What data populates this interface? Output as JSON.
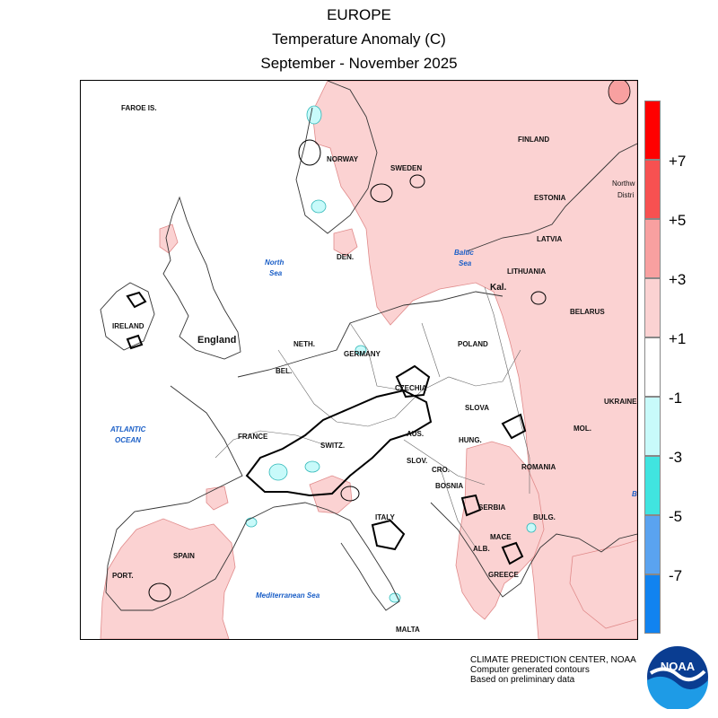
{
  "header": {
    "region": "EUROPE",
    "variable": "Temperature Anomaly (C)",
    "period": "September - November 2025"
  },
  "legend": {
    "bins": [
      {
        "label": "+7",
        "color": "#ff0000"
      },
      {
        "label": "+5",
        "color": "#f75151"
      },
      {
        "label": "+3",
        "color": "#f8a0a0"
      },
      {
        "label": "+1",
        "color": "#fbd2d2"
      },
      {
        "label": "-1",
        "color": "#ffffff"
      },
      {
        "label": "-3",
        "color": "#c8fafa"
      },
      {
        "label": "-5",
        "color": "#40e4e0"
      },
      {
        "label": "-7",
        "color": "#5aa3f0"
      },
      {
        "label": "",
        "color": "#1183f0"
      }
    ]
  },
  "labels": {
    "faroe": "FAROE IS.",
    "norway": "NORWAY",
    "sweden": "SWEDEN",
    "finland": "FINLAND",
    "estonia": "ESTONIA",
    "latvia": "LATVIA",
    "lithuania": "LITHUANIA",
    "kal": "Kal.",
    "belarus": "BELARUS",
    "nwd1": "Northw",
    "nwd2": "Distri",
    "den": "DEN.",
    "north_sea_1": "North",
    "north_sea_2": "Sea",
    "baltic_1": "Baltic",
    "baltic_2": "Sea",
    "ireland": "IRELAND",
    "england": "England",
    "neth": "NETH.",
    "germany": "GERMANY",
    "poland": "POLAND",
    "bel": "BEL.",
    "czechia": "CZECHIA",
    "slov": "SLOVA",
    "ukraine": "UKRAINE",
    "atlantic_1": "ATLANTIC",
    "atlantic_2": "OCEAN",
    "france": "FRANCE",
    "switz": "SWITZ.",
    "aus": "AUS.",
    "hung": "HUNG.",
    "mol": "MOL.",
    "romania": "ROMANIA",
    "slovenia": "SLOV.",
    "cro": "CRO.",
    "bosnia": "BOSNIA",
    "serbia": "SERBIA",
    "bulg": "BULG.",
    "italy": "ITALY",
    "maced": "MACE",
    "alb": "ALB.",
    "greece": "GREECE",
    "spain": "SPAIN",
    "port": "PORT.",
    "med": "Mediterranean Sea",
    "malta": "MALTA",
    "bl": "B"
  },
  "credit": {
    "line1": "CLIMATE PREDICTION CENTER, NOAA",
    "line2": "Computer generated contours",
    "line3": "Based on preliminary data"
  },
  "logo_text": "NOAA"
}
